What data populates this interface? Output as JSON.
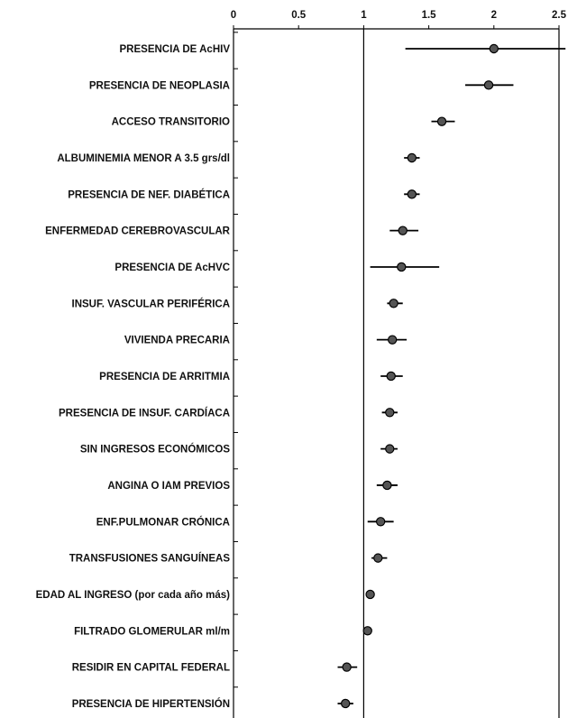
{
  "chart_data": {
    "type": "forest",
    "title": "",
    "xlabel": "",
    "ylabel": "",
    "xlim": [
      0,
      2.5
    ],
    "x_ticks": [
      "0",
      "0.5",
      "1",
      "1.5",
      "2",
      "2.5"
    ],
    "x_tick_values": [
      0,
      0.5,
      1,
      1.5,
      2,
      2.5
    ],
    "reference_line": 1,
    "grid": false,
    "point_color": "#555555",
    "line_color": "#000000",
    "categories": [
      "PRESENCIA DE AcHIV",
      "PRESENCIA DE NEOPLASIA",
      "ACCESO TRANSITORIO",
      "ALBUMINEMIA MENOR A 3.5 grs/dl",
      "PRESENCIA DE NEF. DIABÉTICA",
      "ENFERMEDAD CEREBROVASCULAR",
      "PRESENCIA DE AcHVC",
      "INSUF. VASCULAR PERIFÉRICA",
      "VIVIENDA PRECARIA",
      "PRESENCIA DE ARRITMIA",
      "PRESENCIA DE INSUF. CARDÍACA",
      "SIN INGRESOS ECONÓMICOS",
      "ANGINA O IAM PREVIOS",
      "ENF.PULMONAR CRÓNICA",
      "TRANSFUSIONES SANGUÍNEAS",
      "EDAD AL INGRESO (por cada año más)",
      "FILTRADO GLOMERULAR ml/m",
      "RESIDIR EN CAPITAL FEDERAL",
      "PRESENCIA DE HIPERTENSIÓN"
    ],
    "estimates": [
      2.0,
      1.96,
      1.6,
      1.37,
      1.37,
      1.3,
      1.29,
      1.23,
      1.22,
      1.21,
      1.2,
      1.2,
      1.18,
      1.13,
      1.11,
      1.05,
      1.03,
      0.87,
      0.86
    ],
    "lower": [
      1.32,
      1.78,
      1.52,
      1.31,
      1.31,
      1.2,
      1.05,
      1.18,
      1.1,
      1.13,
      1.14,
      1.13,
      1.1,
      1.03,
      1.06,
      1.04,
      1.02,
      0.8,
      0.8
    ],
    "upper": [
      2.55,
      2.15,
      1.7,
      1.43,
      1.43,
      1.42,
      1.58,
      1.3,
      1.33,
      1.3,
      1.26,
      1.26,
      1.26,
      1.23,
      1.18,
      1.06,
      1.04,
      0.95,
      0.92
    ]
  }
}
